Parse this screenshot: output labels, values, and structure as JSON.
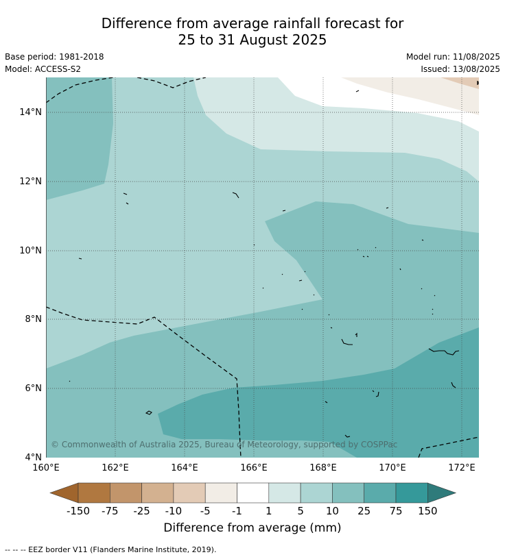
{
  "header": {
    "title_line1": "Difference from average rainfall forecast for",
    "title_line2": "25 to 31 August 2025",
    "base_period": "Base period: 1981-2018",
    "model": "Model: ACCESS-S2",
    "model_run": "Model run: 11/08/2025",
    "issued": "Issued: 13/08/2025"
  },
  "map": {
    "lat_labels": [
      "14°N",
      "12°N",
      "10°N",
      "8°N",
      "6°N",
      "4°N"
    ],
    "lon_labels": [
      "160°E",
      "162°E",
      "164°E",
      "166°E",
      "168°E",
      "170°E",
      "172°E"
    ],
    "copyright": "© Commonwealth of Australia 2025, Bureau of Meteorology, supported by COSPPac",
    "fill_colors": {
      "lt5": "#d5e8e6",
      "lt10": "#acd5d3",
      "lt25": "#84c0be",
      "lt75": "#5aabab",
      "dry_m1": "#f2ede6",
      "dry_m5": "#e3cbb6"
    }
  },
  "colorbar": {
    "labels": [
      "-150",
      "-75",
      "-25",
      "-10",
      "-5",
      "-1",
      "1",
      "5",
      "10",
      "25",
      "75",
      "150"
    ],
    "colors": [
      "#a0652d",
      "#b07840",
      "#c2956b",
      "#d3b190",
      "#e3cbb6",
      "#f2ede6",
      "#ffffff",
      "#d5e8e6",
      "#acd5d3",
      "#84c0be",
      "#5aabab",
      "#35999a",
      "#2f7b7b"
    ],
    "title": "Difference from average (mm)"
  },
  "footnote": "--  --  -- EEZ border V11 (Flanders Marine Institute, 2019)."
}
